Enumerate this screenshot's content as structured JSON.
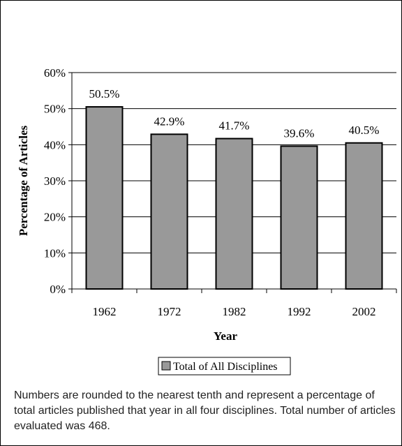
{
  "chart_data": {
    "type": "bar",
    "categories": [
      "1962",
      "1972",
      "1982",
      "1992",
      "2002"
    ],
    "series": [
      {
        "name": "Total of All Disciplines",
        "values": [
          50.5,
          42.9,
          41.7,
          39.6,
          40.5
        ]
      }
    ],
    "data_labels": [
      "50.5%",
      "42.9%",
      "41.7%",
      "39.6%",
      "40.5%"
    ],
    "xlabel": "Year",
    "ylabel": "Percentage of Articles",
    "ylim": [
      0,
      60
    ],
    "yticks": [
      0,
      10,
      20,
      30,
      40,
      50,
      60
    ],
    "ytick_labels": [
      "0%",
      "10%",
      "20%",
      "30%",
      "40%",
      "50%",
      "60%"
    ],
    "grid": true,
    "legend_position": "bottom-center",
    "colors": {
      "bar_fill": "#999999",
      "bar_stroke": "#000000"
    }
  },
  "footnote": "Numbers are rounded to the nearest tenth and represent a percentage of total articles published that year in all four disciplines. Total number of articles evaluated was 468."
}
